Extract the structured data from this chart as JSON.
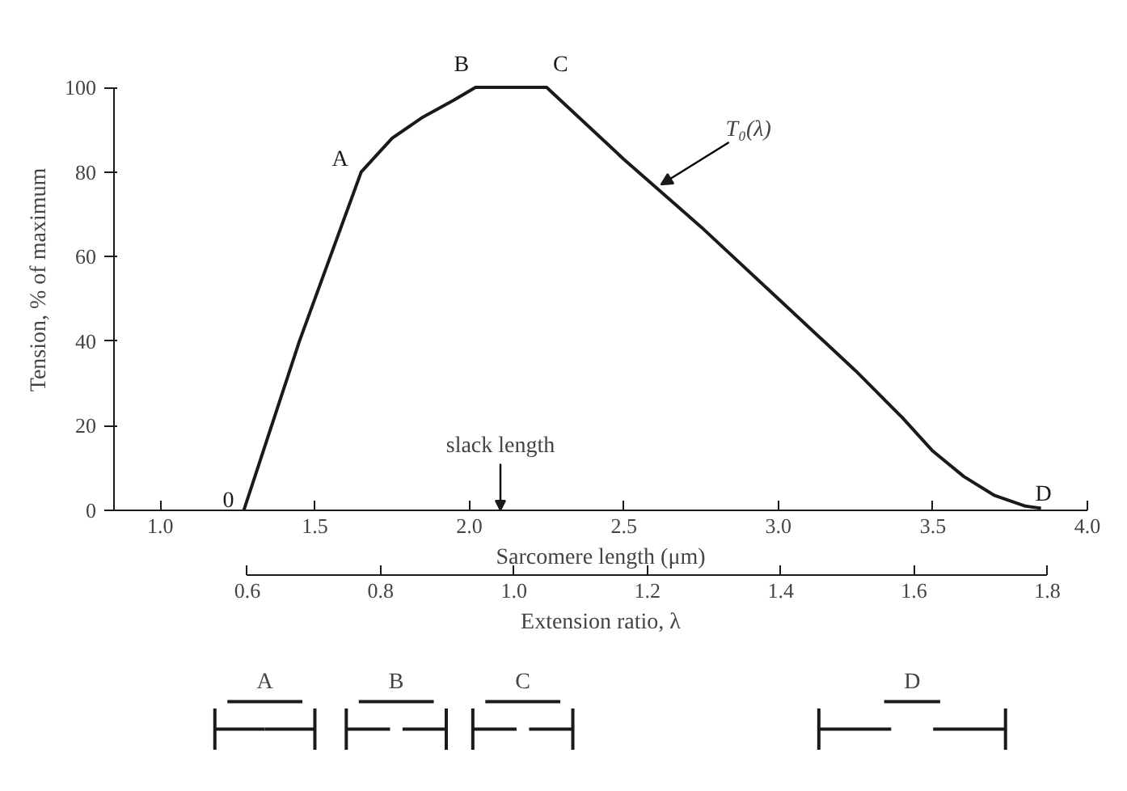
{
  "chart_data": {
    "type": "line",
    "xlabel": "Sarcomere length (μm)",
    "ylabel": "Tension, % of maximum",
    "x2label": "Extension ratio, λ",
    "series": [
      {
        "color": "#1a1a1a",
        "x": [
          1.27,
          1.45,
          1.65,
          1.75,
          1.85,
          1.95,
          2.02,
          2.25,
          2.5,
          2.75,
          3.0,
          3.25,
          3.4,
          3.5,
          3.6,
          3.7,
          3.8,
          3.85
        ],
        "values": [
          0,
          40,
          80,
          88,
          93,
          97,
          100,
          100,
          83,
          67,
          50,
          33,
          22,
          14,
          8,
          3.5,
          1,
          0.5
        ]
      }
    ],
    "xlim": [
      0.85,
      4.0
    ],
    "xticks": [
      {
        "value": 1,
        "label": "1.0"
      },
      1.5,
      {
        "value": 2,
        "label": "2.0"
      },
      2.5,
      {
        "value": 3,
        "label": "3.0"
      },
      3.5,
      {
        "value": 4,
        "label": "4.0"
      }
    ],
    "ylim": [
      0,
      100
    ],
    "yticks": [
      0,
      20,
      40,
      60,
      80,
      100
    ],
    "x2lim": [
      0.4,
      1.86
    ],
    "x2ticks": [
      0.6,
      0.8,
      {
        "value": 1,
        "label": "1.0"
      },
      1.2,
      1.4,
      1.6,
      1.8
    ],
    "grid": false,
    "marker": "none",
    "line_style": "solid",
    "annotations": [
      {
        "text": "0",
        "x": 1.27,
        "y": 0
      },
      {
        "text": "A",
        "x": 1.65,
        "y": 80
      },
      {
        "text": "B",
        "x": 2.02,
        "y": 100
      },
      {
        "text": "C",
        "x": 2.25,
        "y": 100
      },
      {
        "text": "D",
        "x": 3.8,
        "y": 0
      },
      {
        "text": "T₀(λ)",
        "x": 2.62,
        "y": 77
      },
      "slack length",
      "A",
      "B",
      "C",
      "D"
    ]
  }
}
